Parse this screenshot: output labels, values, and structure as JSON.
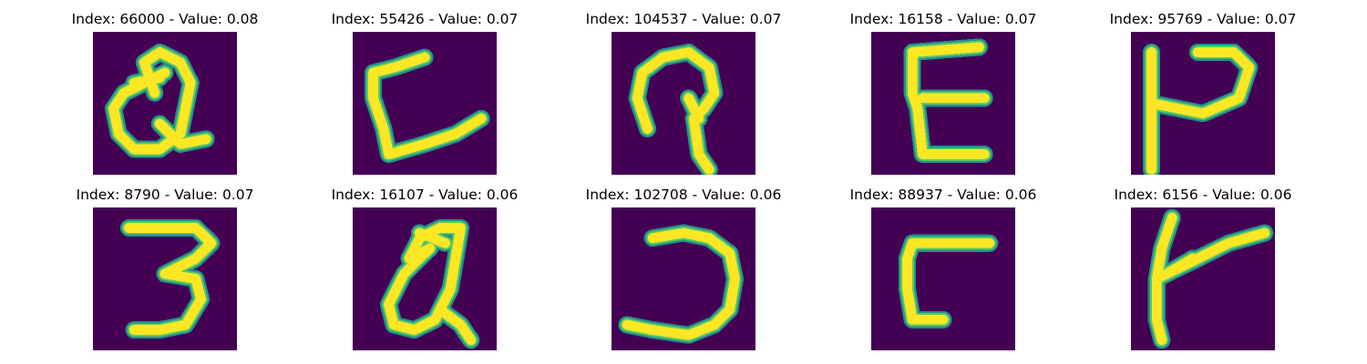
{
  "theme": {
    "background": "#440154",
    "stroke_bright": "#fde725",
    "stroke_mid": "#5ec962",
    "stroke_edge": "#21918c"
  },
  "panels": [
    {
      "title": "Index: 66000 - Value: 0.08",
      "glyph_name": "handwritten-q-glyph",
      "strokes": [
        [
          [
            12,
            12
          ],
          [
            10,
            6
          ],
          [
            13,
            4
          ],
          [
            17,
            6
          ],
          [
            19,
            10
          ],
          [
            17,
            20
          ],
          [
            13,
            23
          ],
          [
            8,
            23
          ],
          [
            5,
            20
          ],
          [
            4,
            15
          ],
          [
            6,
            12
          ],
          [
            10,
            10
          ],
          [
            14,
            8
          ]
        ],
        [
          [
            13,
            18
          ],
          [
            17,
            22
          ],
          [
            22,
            21
          ]
        ],
        [
          [
            8,
            10
          ],
          [
            13,
            9
          ]
        ]
      ]
    },
    {
      "title": "Index: 55426 - Value: 0.07",
      "glyph_name": "handwritten-l-glyph",
      "strokes": [
        [
          [
            14,
            5
          ],
          [
            8,
            7
          ],
          [
            4,
            8
          ],
          [
            4,
            13
          ],
          [
            6,
            19
          ],
          [
            7,
            24
          ],
          [
            14,
            22
          ],
          [
            20,
            20
          ],
          [
            25,
            17
          ]
        ]
      ]
    },
    {
      "title": "Index: 104537 - Value: 0.07",
      "glyph_name": "handwritten-p-loop-glyph",
      "strokes": [
        [
          [
            7,
            19
          ],
          [
            5,
            13
          ],
          [
            6,
            8
          ],
          [
            10,
            5
          ],
          [
            15,
            4
          ],
          [
            19,
            7
          ],
          [
            20,
            12
          ],
          [
            18,
            15
          ],
          [
            16,
            17
          ],
          [
            17,
            24
          ],
          [
            19,
            27
          ]
        ],
        [
          [
            15,
            13
          ],
          [
            17,
            17
          ]
        ]
      ]
    },
    {
      "title": "Index: 16158 - Value: 0.07",
      "glyph_name": "handwritten-e-glyph",
      "strokes": [
        [
          [
            21,
            3
          ],
          [
            8,
            4
          ],
          [
            8,
            12
          ],
          [
            9,
            15
          ],
          [
            10,
            24
          ],
          [
            22,
            24
          ]
        ],
        [
          [
            10,
            13
          ],
          [
            22,
            13
          ]
        ]
      ]
    },
    {
      "title": "Index: 95769 - Value: 0.07",
      "glyph_name": "handwritten-h-glyph",
      "strokes": [
        [
          [
            4,
            4
          ],
          [
            4,
            27
          ]
        ],
        [
          [
            4,
            14
          ],
          [
            14,
            16
          ],
          [
            21,
            13
          ],
          [
            23,
            7
          ],
          [
            20,
            4
          ],
          [
            13,
            4
          ]
        ]
      ]
    },
    {
      "title": "Index: 8790 - Value: 0.07",
      "glyph_name": "handwritten-3-glyph",
      "strokes": [
        [
          [
            7,
            4
          ],
          [
            20,
            4
          ],
          [
            23,
            7
          ],
          [
            20,
            10
          ],
          [
            14,
            13
          ],
          [
            20,
            14
          ],
          [
            21,
            18
          ],
          [
            18,
            23
          ],
          [
            13,
            24
          ],
          [
            8,
            24
          ]
        ]
      ]
    },
    {
      "title": "Index: 16107 - Value: 0.06",
      "glyph_name": "handwritten-q-alt-glyph",
      "strokes": [
        [
          [
            15,
            8
          ],
          [
            10,
            13
          ],
          [
            7,
            19
          ],
          [
            8,
            23
          ],
          [
            12,
            24
          ],
          [
            16,
            22
          ],
          [
            19,
            16
          ],
          [
            20,
            10
          ],
          [
            21,
            4
          ],
          [
            17,
            4
          ],
          [
            13,
            6
          ],
          [
            11,
            10
          ],
          [
            15,
            8
          ]
        ],
        [
          [
            17,
            20
          ],
          [
            21,
            23
          ],
          [
            23,
            26
          ]
        ],
        [
          [
            13,
            5
          ],
          [
            18,
            7
          ]
        ]
      ]
    },
    {
      "title": "Index: 102708 - Value: 0.06",
      "glyph_name": "handwritten-j-glyph",
      "strokes": [
        [
          [
            8,
            6
          ],
          [
            14,
            5
          ],
          [
            19,
            6
          ],
          [
            23,
            9
          ],
          [
            24,
            14
          ],
          [
            23,
            20
          ],
          [
            20,
            23
          ],
          [
            15,
            25
          ],
          [
            8,
            24
          ],
          [
            3,
            23
          ]
        ]
      ]
    },
    {
      "title": "Index: 88937 - Value: 0.06",
      "glyph_name": "handwritten-r-glyph",
      "strokes": [
        [
          [
            23,
            7
          ],
          [
            8,
            7
          ],
          [
            7,
            10
          ],
          [
            7,
            16
          ],
          [
            8,
            22
          ],
          [
            14,
            22
          ]
        ]
      ]
    },
    {
      "title": "Index: 6156 - Value: 0.06",
      "glyph_name": "handwritten-k-glyph",
      "strokes": [
        [
          [
            8,
            2
          ],
          [
            6,
            8
          ],
          [
            5,
            14
          ],
          [
            5,
            22
          ],
          [
            6,
            26
          ]
        ],
        [
          [
            5,
            14
          ],
          [
            13,
            10
          ],
          [
            19,
            7
          ],
          [
            26,
            5
          ]
        ],
        [
          [
            7,
            13
          ],
          [
            12,
            10
          ]
        ]
      ]
    }
  ]
}
